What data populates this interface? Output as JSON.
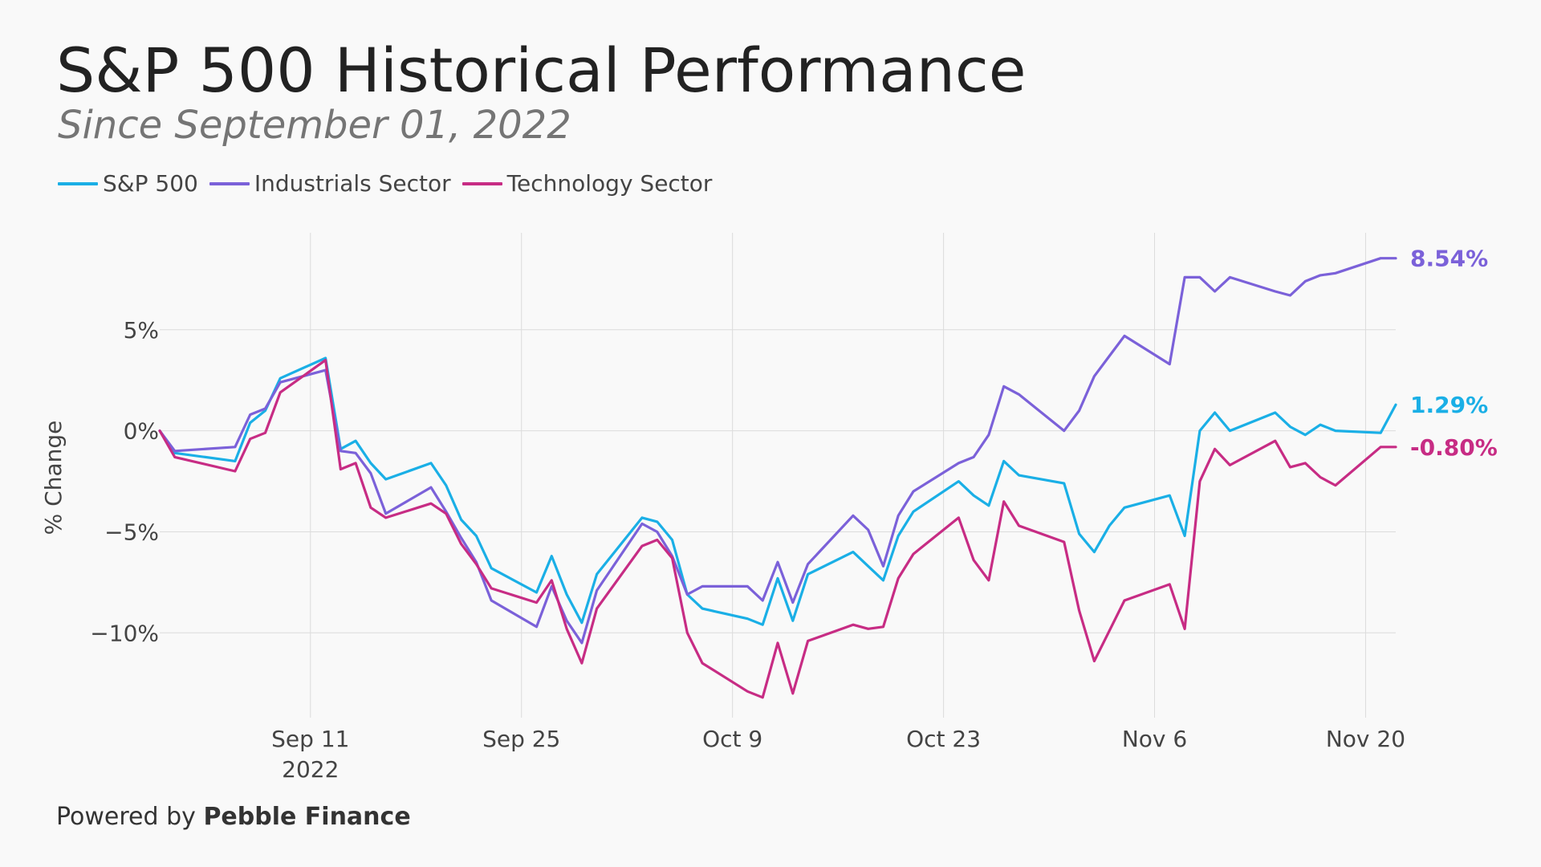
{
  "header": {
    "title": "S&P 500 Historical Performance",
    "subtitle": "Since September 01, 2022"
  },
  "footer": {
    "prefix": "Powered by",
    "brand": "Pebble Finance"
  },
  "chart_data": {
    "type": "line",
    "title": "S&P 500 Historical Performance",
    "subtitle": "Since September 01, 2022",
    "xlabel": "",
    "ylabel": "% Change",
    "x": [
      "2022-09-01",
      "2022-09-02",
      "2022-09-06",
      "2022-09-07",
      "2022-09-08",
      "2022-09-09",
      "2022-09-12",
      "2022-09-13",
      "2022-09-14",
      "2022-09-15",
      "2022-09-16",
      "2022-09-19",
      "2022-09-20",
      "2022-09-21",
      "2022-09-22",
      "2022-09-23",
      "2022-09-26",
      "2022-09-27",
      "2022-09-28",
      "2022-09-29",
      "2022-09-30",
      "2022-10-03",
      "2022-10-04",
      "2022-10-05",
      "2022-10-06",
      "2022-10-07",
      "2022-10-10",
      "2022-10-11",
      "2022-10-12",
      "2022-10-13",
      "2022-10-14",
      "2022-10-17",
      "2022-10-18",
      "2022-10-19",
      "2022-10-20",
      "2022-10-21",
      "2022-10-24",
      "2022-10-25",
      "2022-10-26",
      "2022-10-27",
      "2022-10-28",
      "2022-10-31",
      "2022-11-01",
      "2022-11-02",
      "2022-11-03",
      "2022-11-04",
      "2022-11-07",
      "2022-11-08",
      "2022-11-09",
      "2022-11-10",
      "2022-11-11",
      "2022-11-14",
      "2022-11-15",
      "2022-11-16",
      "2022-11-17",
      "2022-11-18",
      "2022-11-21",
      "2022-11-22"
    ],
    "series": [
      {
        "name": "S&P 500",
        "color": "#1AAFE6",
        "end_label": "1.29%",
        "values": [
          0.0,
          -1.1,
          -1.5,
          0.4,
          1.0,
          2.6,
          3.6,
          -0.9,
          -0.5,
          -1.6,
          -2.4,
          -1.6,
          -2.7,
          -4.4,
          -5.2,
          -6.8,
          -8.0,
          -6.2,
          -8.1,
          -9.5,
          -7.1,
          -4.3,
          -4.5,
          -5.4,
          -8.1,
          -8.8,
          -9.3,
          -9.6,
          -7.3,
          -9.4,
          -7.1,
          -6.0,
          -6.7,
          -7.4,
          -5.2,
          -4.0,
          -2.5,
          -3.2,
          -3.7,
          -1.5,
          -2.2,
          -2.6,
          -5.1,
          -6.0,
          -4.7,
          -3.8,
          -3.2,
          -5.2,
          0.0,
          0.9,
          0.0,
          0.9,
          0.2,
          -0.2,
          0.3,
          0.0,
          -0.1,
          1.29
        ]
      },
      {
        "name": "Industrials Sector",
        "color": "#7B61D9",
        "end_label": "8.54%",
        "values": [
          0.0,
          -1.0,
          -0.8,
          0.8,
          1.1,
          2.4,
          3.0,
          -1.0,
          -1.1,
          -2.1,
          -4.1,
          -2.8,
          -4.0,
          -5.3,
          -6.5,
          -8.4,
          -9.7,
          -7.7,
          -9.4,
          -10.5,
          -7.9,
          -4.6,
          -5.0,
          -6.2,
          -8.1,
          -7.7,
          -7.7,
          -8.4,
          -6.5,
          -8.5,
          -6.6,
          -4.2,
          -4.9,
          -6.7,
          -4.2,
          -3.0,
          -1.6,
          -1.3,
          -0.2,
          2.2,
          1.8,
          0.0,
          1.0,
          2.7,
          3.7,
          4.7,
          3.3,
          7.6,
          7.6,
          6.9,
          7.6,
          6.9,
          6.7,
          7.4,
          7.7,
          7.8,
          8.54,
          8.54
        ]
      },
      {
        "name": "Technology Sector",
        "color": "#C72C84",
        "end_label": "-0.80%",
        "values": [
          0.0,
          -1.3,
          -2.0,
          -0.4,
          -0.1,
          1.9,
          3.5,
          -1.9,
          -1.6,
          -3.8,
          -4.3,
          -3.6,
          -4.1,
          -5.6,
          -6.6,
          -7.8,
          -8.5,
          -7.4,
          -9.8,
          -11.5,
          -8.8,
          -5.7,
          -5.4,
          -6.3,
          -10.0,
          -11.5,
          -12.9,
          -13.2,
          -10.5,
          -13.0,
          -10.4,
          -9.6,
          -9.8,
          -9.7,
          -7.3,
          -6.1,
          -4.3,
          -6.4,
          -7.4,
          -3.5,
          -4.7,
          -5.5,
          -8.9,
          -11.4,
          -9.9,
          -8.4,
          -7.6,
          -9.8,
          -2.5,
          -0.9,
          -1.7,
          -0.5,
          -1.8,
          -1.6,
          -2.3,
          -2.7,
          -0.8,
          -0.8
        ]
      }
    ],
    "y_ticks": [
      5,
      0,
      -5,
      -10
    ],
    "y_tick_labels": [
      "5%",
      "0%",
      "−5%",
      "−10%"
    ],
    "ylim": [
      -14.2,
      9.8
    ],
    "x_ticks": [
      {
        "date": "2022-09-11",
        "label": "Sep 11",
        "sublabel": "2022"
      },
      {
        "date": "2022-09-25",
        "label": "Sep 25",
        "sublabel": ""
      },
      {
        "date": "2022-10-09",
        "label": "Oct 9",
        "sublabel": ""
      },
      {
        "date": "2022-10-23",
        "label": "Oct 23",
        "sublabel": ""
      },
      {
        "date": "2022-11-06",
        "label": "Nov 6",
        "sublabel": ""
      },
      {
        "date": "2022-11-20",
        "label": "Nov 20",
        "sublabel": ""
      }
    ],
    "xlim": [
      "2022-09-01",
      "2022-11-22"
    ],
    "grid": true,
    "legend_placement": "top-left"
  }
}
